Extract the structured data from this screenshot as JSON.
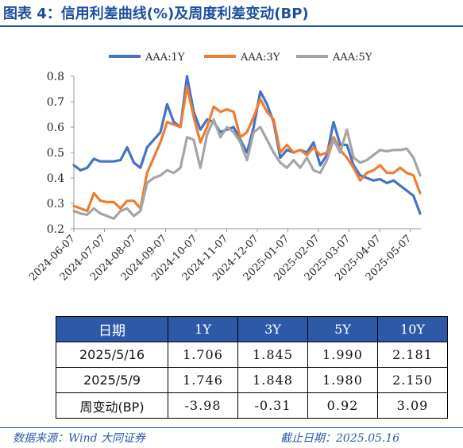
{
  "title": "图表 4：信用利差曲线(%)及周度利差变动(BP)",
  "chart_data": {
    "type": "line",
    "ylim": [
      0.2,
      0.8
    ],
    "yticks": [
      "0.2",
      "0.3",
      "0.4",
      "0.5",
      "0.6",
      "0.7",
      "0.8"
    ],
    "xticks": [
      "2024-06-07",
      "2024-07-07",
      "2024-08-07",
      "2024-09-07",
      "2024-10-07",
      "2024-11-07",
      "2024-12-07",
      "2025-01-07",
      "2025-02-07",
      "2025-03-07",
      "2025-04-07",
      "2025-05-07"
    ],
    "legend_position": "top",
    "series": [
      {
        "name": "AAA:1Y",
        "color": "#4472c4",
        "values": [
          0.45,
          0.43,
          0.44,
          0.475,
          0.465,
          0.465,
          0.465,
          0.47,
          0.52,
          0.46,
          0.44,
          0.52,
          0.55,
          0.58,
          0.69,
          0.62,
          0.6,
          0.8,
          0.66,
          0.59,
          0.63,
          0.62,
          0.58,
          0.59,
          0.6,
          0.55,
          0.5,
          0.6,
          0.74,
          0.69,
          0.62,
          0.48,
          0.51,
          0.5,
          0.51,
          0.5,
          0.54,
          0.45,
          0.49,
          0.62,
          0.53,
          0.53,
          0.45,
          0.41,
          0.4,
          0.39,
          0.395,
          0.38,
          0.39,
          0.37,
          0.35,
          0.33,
          0.26
        ]
      },
      {
        "name": "AAA:3Y",
        "color": "#ed7d31",
        "values": [
          0.29,
          0.28,
          0.27,
          0.34,
          0.31,
          0.305,
          0.305,
          0.28,
          0.31,
          0.31,
          0.28,
          0.42,
          0.48,
          0.54,
          0.62,
          0.61,
          0.6,
          0.76,
          0.64,
          0.54,
          0.6,
          0.68,
          0.66,
          0.67,
          0.66,
          0.56,
          0.58,
          0.64,
          0.71,
          0.66,
          0.63,
          0.5,
          0.53,
          0.5,
          0.51,
          0.49,
          0.52,
          0.49,
          0.5,
          0.56,
          0.51,
          0.48,
          0.44,
          0.39,
          0.42,
          0.43,
          0.45,
          0.42,
          0.42,
          0.44,
          0.42,
          0.41,
          0.34
        ]
      },
      {
        "name": "AAA:5Y",
        "color": "#a5a5a5",
        "values": [
          0.27,
          0.26,
          0.255,
          0.28,
          0.26,
          0.25,
          0.24,
          0.27,
          0.28,
          0.25,
          0.27,
          0.38,
          0.4,
          0.41,
          0.43,
          0.42,
          0.44,
          0.56,
          0.55,
          0.44,
          0.57,
          0.63,
          0.56,
          0.6,
          0.58,
          0.54,
          0.47,
          0.58,
          0.6,
          0.55,
          0.5,
          0.46,
          0.44,
          0.47,
          0.44,
          0.48,
          0.43,
          0.42,
          0.47,
          0.55,
          0.5,
          0.59,
          0.48,
          0.46,
          0.47,
          0.49,
          0.51,
          0.505,
          0.51,
          0.51,
          0.515,
          0.48,
          0.41
        ]
      }
    ]
  },
  "table": {
    "headers": [
      "日期",
      "1Y",
      "3Y",
      "5Y",
      "10Y"
    ],
    "rows": [
      [
        "2025/5/16",
        "1.706",
        "1.845",
        "1.990",
        "2.181"
      ],
      [
        "2025/5/9",
        "1.746",
        "1.848",
        "1.980",
        "2.150"
      ],
      [
        "周变动(BP)",
        "-3.98",
        "-0.31",
        "0.92",
        "3.09"
      ]
    ]
  },
  "footer": {
    "source": "数据来源：Wind 大同证券",
    "date": "截止日期：2025.05.16"
  }
}
